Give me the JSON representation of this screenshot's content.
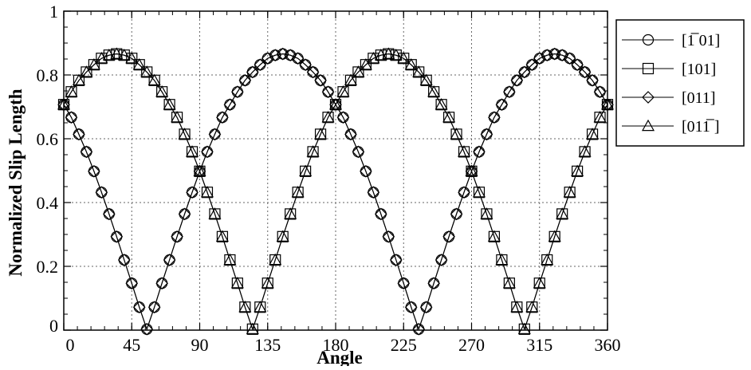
{
  "chart_data": {
    "type": "line",
    "title": "",
    "xlabel": "Angle",
    "ylabel": "Normalized  Slip  Length",
    "xlim": [
      0,
      360
    ],
    "ylim": [
      0,
      1
    ],
    "xticks": [
      0,
      45,
      90,
      135,
      180,
      225,
      270,
      315,
      360
    ],
    "xtick_labels": [
      "0",
      "45",
      "90",
      "135",
      "180",
      "225",
      "270",
      "315",
      "360"
    ],
    "yticks": [
      0,
      0.2,
      0.4,
      0.6,
      0.8,
      1
    ],
    "ytick_labels": [
      "0",
      "0.2",
      "0.4",
      "0.6",
      "0.8",
      "1"
    ],
    "grid": true,
    "legend_position": "outside-right",
    "marker_angles": [
      0,
      5,
      10,
      15,
      20,
      25,
      30,
      35,
      40,
      45,
      50,
      55,
      60,
      65,
      70,
      75,
      80,
      85,
      90,
      95,
      100,
      105,
      110,
      115,
      120,
      125,
      130,
      135,
      140,
      145,
      150,
      155,
      160,
      165,
      170,
      175,
      180,
      185,
      190,
      195,
      200,
      205,
      210,
      215,
      220,
      225,
      230,
      235,
      240,
      245,
      250,
      255,
      260,
      265,
      270,
      275,
      280,
      285,
      290,
      295,
      300,
      305,
      310,
      315,
      320,
      325,
      330,
      335,
      340,
      345,
      350,
      355,
      360
    ],
    "series": [
      {
        "name": "[1̅ 01]",
        "marker": "circle",
        "x": [
          0,
          5,
          10,
          15,
          20,
          25,
          30,
          35,
          40,
          45,
          50,
          55,
          60,
          65,
          70,
          75,
          80,
          85,
          90,
          95,
          100,
          105,
          110,
          115,
          120,
          125,
          130,
          135,
          140,
          145,
          150,
          155,
          160,
          165,
          170,
          175,
          180,
          185,
          190,
          195,
          200,
          205,
          210,
          215,
          220,
          225,
          230,
          235,
          240,
          245,
          250,
          255,
          260,
          265,
          270,
          275,
          280,
          285,
          290,
          295,
          300,
          305,
          310,
          315,
          320,
          325,
          330,
          335,
          340,
          345,
          350,
          355,
          360
        ],
        "values": [
          0.707,
          0.667,
          0.614,
          0.559,
          0.498,
          0.432,
          0.364,
          0.293,
          0.22,
          0.147,
          0.072,
          0.003,
          0.072,
          0.147,
          0.22,
          0.293,
          0.364,
          0.432,
          0.498,
          0.559,
          0.614,
          0.667,
          0.707,
          0.747,
          0.783,
          0.809,
          0.832,
          0.852,
          0.862,
          0.866,
          0.862,
          0.852,
          0.832,
          0.809,
          0.783,
          0.747,
          0.707,
          0.667,
          0.614,
          0.559,
          0.498,
          0.432,
          0.364,
          0.293,
          0.22,
          0.147,
          0.072,
          0.003,
          0.072,
          0.147,
          0.22,
          0.293,
          0.364,
          0.432,
          0.498,
          0.559,
          0.614,
          0.667,
          0.707,
          0.747,
          0.783,
          0.809,
          0.832,
          0.852,
          0.862,
          0.866,
          0.862,
          0.852,
          0.832,
          0.809,
          0.783,
          0.747,
          0.707
        ]
      },
      {
        "name": "[101]",
        "marker": "square",
        "x": [
          0,
          5,
          10,
          15,
          20,
          25,
          30,
          35,
          40,
          45,
          50,
          55,
          60,
          65,
          70,
          75,
          80,
          85,
          90,
          95,
          100,
          105,
          110,
          115,
          120,
          125,
          130,
          135,
          140,
          145,
          150,
          155,
          160,
          165,
          170,
          175,
          180,
          185,
          190,
          195,
          200,
          205,
          210,
          215,
          220,
          225,
          230,
          235,
          240,
          245,
          250,
          255,
          260,
          265,
          270,
          275,
          280,
          285,
          290,
          295,
          300,
          305,
          310,
          315,
          320,
          325,
          330,
          335,
          340,
          345,
          350,
          355,
          360
        ],
        "values": [
          0.707,
          0.747,
          0.783,
          0.809,
          0.832,
          0.852,
          0.862,
          0.866,
          0.862,
          0.852,
          0.832,
          0.809,
          0.783,
          0.747,
          0.707,
          0.667,
          0.614,
          0.559,
          0.498,
          0.432,
          0.364,
          0.293,
          0.22,
          0.147,
          0.072,
          0.003,
          0.072,
          0.147,
          0.22,
          0.293,
          0.364,
          0.432,
          0.498,
          0.559,
          0.614,
          0.667,
          0.707,
          0.747,
          0.783,
          0.809,
          0.832,
          0.852,
          0.862,
          0.866,
          0.862,
          0.852,
          0.832,
          0.809,
          0.783,
          0.747,
          0.707,
          0.667,
          0.614,
          0.559,
          0.498,
          0.432,
          0.364,
          0.293,
          0.22,
          0.147,
          0.072,
          0.003,
          0.072,
          0.147,
          0.22,
          0.293,
          0.364,
          0.432,
          0.498,
          0.559,
          0.614,
          0.667,
          0.707
        ]
      },
      {
        "name": "[011]",
        "marker": "diamond",
        "x": [
          0,
          5,
          10,
          15,
          20,
          25,
          30,
          35,
          40,
          45,
          50,
          55,
          60,
          65,
          70,
          75,
          80,
          85,
          90,
          95,
          100,
          105,
          110,
          115,
          120,
          125,
          130,
          135,
          140,
          145,
          150,
          155,
          160,
          165,
          170,
          175,
          180,
          185,
          190,
          195,
          200,
          205,
          210,
          215,
          220,
          225,
          230,
          235,
          240,
          245,
          250,
          255,
          260,
          265,
          270,
          275,
          280,
          285,
          290,
          295,
          300,
          305,
          310,
          315,
          320,
          325,
          330,
          335,
          340,
          345,
          350,
          355,
          360
        ],
        "values": [
          0.707,
          0.667,
          0.614,
          0.559,
          0.498,
          0.432,
          0.364,
          0.293,
          0.22,
          0.147,
          0.072,
          0.003,
          0.072,
          0.147,
          0.22,
          0.293,
          0.364,
          0.432,
          0.498,
          0.559,
          0.614,
          0.667,
          0.707,
          0.747,
          0.783,
          0.809,
          0.832,
          0.852,
          0.862,
          0.866,
          0.862,
          0.852,
          0.832,
          0.809,
          0.783,
          0.747,
          0.707,
          0.667,
          0.614,
          0.559,
          0.498,
          0.432,
          0.364,
          0.293,
          0.22,
          0.147,
          0.072,
          0.003,
          0.072,
          0.147,
          0.22,
          0.293,
          0.364,
          0.432,
          0.498,
          0.559,
          0.614,
          0.667,
          0.707,
          0.747,
          0.783,
          0.809,
          0.832,
          0.852,
          0.862,
          0.866,
          0.862,
          0.852,
          0.832,
          0.809,
          0.783,
          0.747,
          0.707
        ]
      },
      {
        "name": "[011̅ ]",
        "marker": "triangle",
        "x": [
          0,
          5,
          10,
          15,
          20,
          25,
          30,
          35,
          40,
          45,
          50,
          55,
          60,
          65,
          70,
          75,
          80,
          85,
          90,
          95,
          100,
          105,
          110,
          115,
          120,
          125,
          130,
          135,
          140,
          145,
          150,
          155,
          160,
          165,
          170,
          175,
          180,
          185,
          190,
          195,
          200,
          205,
          210,
          215,
          220,
          225,
          230,
          235,
          240,
          245,
          250,
          255,
          260,
          265,
          270,
          275,
          280,
          285,
          290,
          295,
          300,
          305,
          310,
          315,
          320,
          325,
          330,
          335,
          340,
          345,
          350,
          355,
          360
        ],
        "values": [
          0.707,
          0.747,
          0.783,
          0.809,
          0.832,
          0.852,
          0.862,
          0.866,
          0.862,
          0.852,
          0.832,
          0.809,
          0.783,
          0.747,
          0.707,
          0.667,
          0.614,
          0.559,
          0.498,
          0.432,
          0.364,
          0.293,
          0.22,
          0.147,
          0.072,
          0.003,
          0.072,
          0.147,
          0.22,
          0.293,
          0.364,
          0.432,
          0.498,
          0.559,
          0.614,
          0.667,
          0.707,
          0.747,
          0.783,
          0.809,
          0.832,
          0.852,
          0.862,
          0.866,
          0.862,
          0.852,
          0.832,
          0.809,
          0.783,
          0.747,
          0.707,
          0.667,
          0.614,
          0.559,
          0.498,
          0.432,
          0.364,
          0.293,
          0.22,
          0.147,
          0.072,
          0.003,
          0.072,
          0.147,
          0.22,
          0.293,
          0.364,
          0.432,
          0.498,
          0.559,
          0.614,
          0.667,
          0.707
        ]
      }
    ]
  }
}
